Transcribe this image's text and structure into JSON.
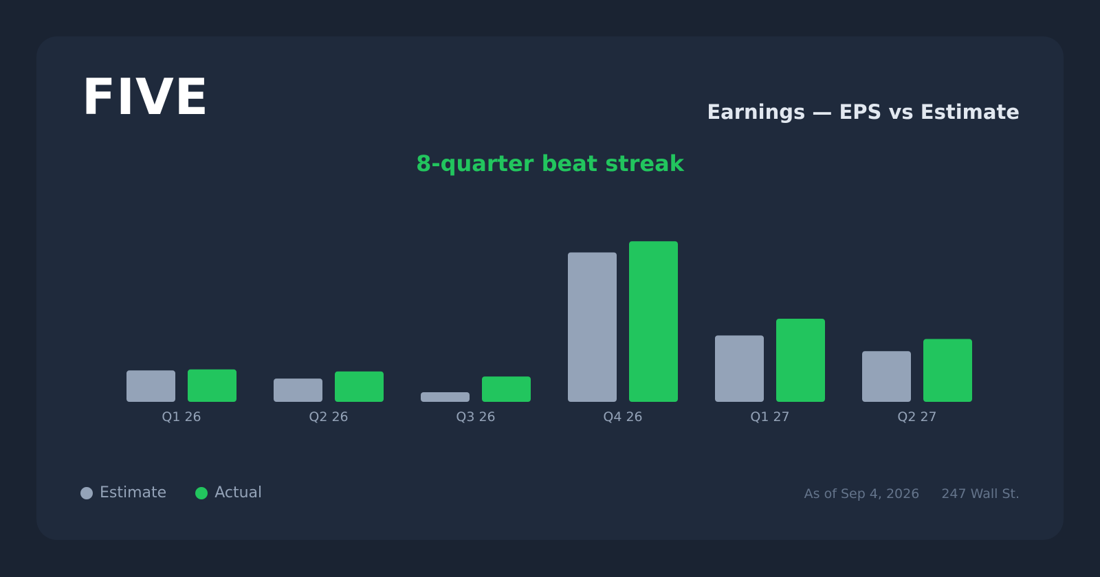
{
  "header": {
    "ticker": "FIVE",
    "title": "Earnings — EPS vs Estimate",
    "subtitle": "8-quarter beat streak"
  },
  "legend": {
    "estimate_label": "Estimate",
    "actual_label": "Actual"
  },
  "footer": {
    "as_of": "As of Sep 4, 2026",
    "source": "247 Wall St."
  },
  "colors": {
    "estimate": "#94a3b8",
    "actual": "#22c55e",
    "tick_label": "#94a3b8"
  },
  "chart_data": {
    "type": "bar",
    "categories": [
      "Q1 26",
      "Q2 26",
      "Q3 26",
      "Q4 26",
      "Q1 27",
      "Q2 27"
    ],
    "series": [
      {
        "name": "Estimate",
        "values": [
          0.62,
          0.46,
          0.19,
          2.95,
          1.31,
          1.0
        ]
      },
      {
        "name": "Actual",
        "values": [
          0.64,
          0.6,
          0.5,
          3.17,
          1.64,
          1.24
        ]
      }
    ],
    "ylim": [
      0,
      4.0
    ],
    "grid": false,
    "legend_position": "bottom-left"
  }
}
